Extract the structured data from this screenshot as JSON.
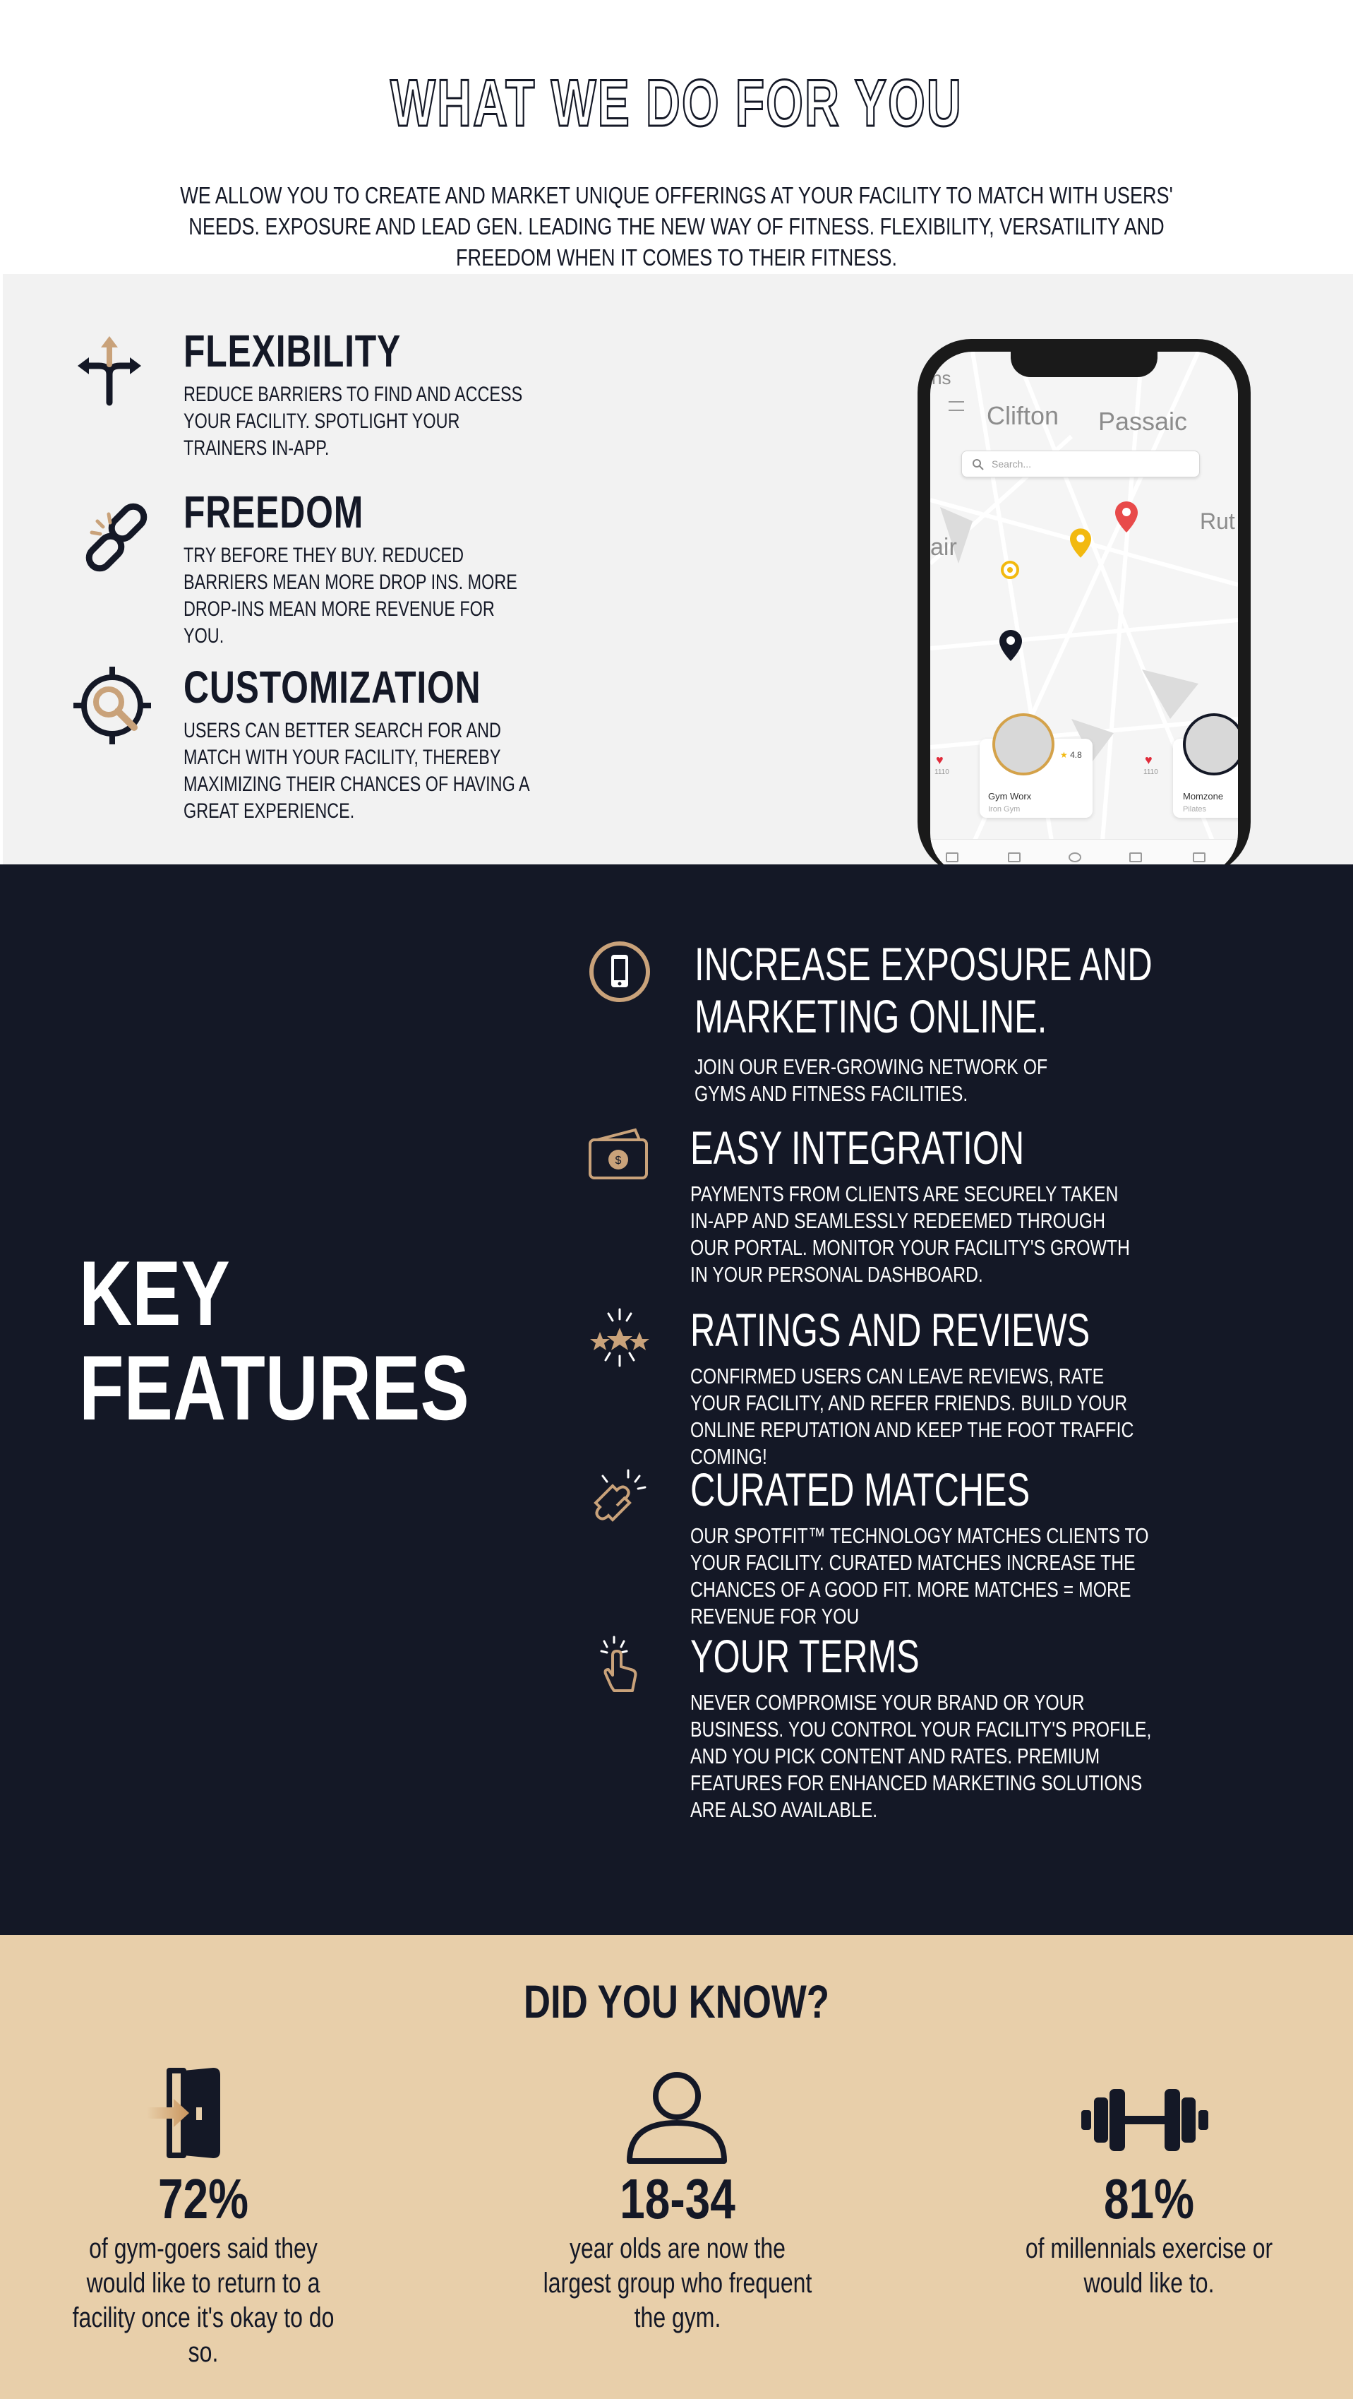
{
  "hero": {
    "title": "WHAT WE DO FOR YOU",
    "text": "WE ALLOW YOU TO CREATE AND MARKET UNIQUE OFFERINGS AT YOUR FACILITY TO MATCH WITH USERS' NEEDS. EXPOSURE AND LEAD GEN. LEADING THE NEW WAY OF FITNESS. FLEXIBILITY, VERSATILITY AND FREEDOM WHEN IT COMES TO THEIR FITNESS."
  },
  "benefits": {
    "items": [
      {
        "icon": "split-arrows-icon",
        "title": "FLEXIBILITY",
        "text": "REDUCE BARRIERS TO FIND AND ACCESS YOUR FACILITY. SPOTLIGHT YOUR TRAINERS IN-APP."
      },
      {
        "icon": "broken-chain-icon",
        "title": "FREEDOM",
        "text": "TRY BEFORE THEY BUY. REDUCED BARRIERS MEAN MORE DROP INS. MORE DROP-INS MEAN MORE REVENUE FOR YOU."
      },
      {
        "icon": "target-search-icon",
        "title": "CUSTOMIZATION",
        "text": "USERS CAN BETTER SEARCH FOR AND MATCH WITH YOUR FACILITY, THEREBY MAXIMIZING THEIR CHANCES OF HAVING A GREAT EXPERIENCE."
      }
    ],
    "phone": {
      "map_labels": [
        "Clifton",
        "Passaic",
        "Rut",
        "air",
        "ns"
      ],
      "search_placeholder": "Search...",
      "cards": [
        {
          "name": "Gym Worx",
          "sub": "Iron Gym",
          "rating": "4.8",
          "likes_left": "1110",
          "likes_right": "1110"
        },
        {
          "name": "Momzone",
          "sub": "Pilates"
        }
      ]
    }
  },
  "features": {
    "title_line1": "KEY",
    "title_line2": "FEATURES",
    "items": [
      {
        "icon": "phone-icon",
        "title": "INCREASE EXPOSURE AND MARKETING ONLINE.",
        "text": "JOIN OUR EVER-GROWING NETWORK OF GYMS AND FITNESS FACILITIES."
      },
      {
        "icon": "wallet-icon",
        "title": "EASY INTEGRATION",
        "text": "PAYMENTS FROM CLIENTS ARE SECURELY TAKEN IN-APP AND SEAMLESSLY REDEEMED THROUGH OUR PORTAL. MONITOR YOUR FACILITY'S GROWTH IN YOUR PERSONAL DASHBOARD."
      },
      {
        "icon": "stars-icon",
        "title": "RATINGS AND REVIEWS",
        "text": "CONFIRMED USERS CAN LEAVE REVIEWS, RATE YOUR FACILITY, AND REFER FRIENDS. BUILD YOUR ONLINE REPUTATION AND KEEP THE FOOT TRAFFIC COMING!"
      },
      {
        "icon": "puzzle-icon",
        "title": "CURATED MATCHES",
        "text": "OUR SPOTFIT™ TECHNOLOGY MATCHES CLIENTS TO YOUR FACILITY. CURATED MATCHES INCREASE THE CHANCES OF A GOOD FIT. MORE MATCHES = MORE REVENUE FOR YOU"
      },
      {
        "icon": "tap-hand-icon",
        "title": "YOUR TERMS",
        "text": "NEVER COMPROMISE YOUR BRAND OR YOUR BUSINESS. YOU CONTROL YOUR FACILITY'S PROFILE, AND YOU PICK CONTENT AND RATES. PREMIUM FEATURES FOR ENHANCED MARKETING SOLUTIONS ARE ALSO AVAILABLE."
      }
    ]
  },
  "facts": {
    "title": "DID YOU KNOW?",
    "items": [
      {
        "icon": "door-enter-icon",
        "value": "72%",
        "text": "of gym-goers said they would like to return to a facility once it's okay to do so."
      },
      {
        "icon": "person-icon",
        "value": "18-34",
        "text": "year olds are now the largest group who frequent the gym."
      },
      {
        "icon": "dumbbell-icon",
        "value": "81%",
        "text": "of millennials exercise or would like to."
      }
    ]
  },
  "colors": {
    "navy": "#141826",
    "sand": "#e8cfaa",
    "gold": "#c9a27a",
    "light_gray": "#f2f2f2"
  }
}
